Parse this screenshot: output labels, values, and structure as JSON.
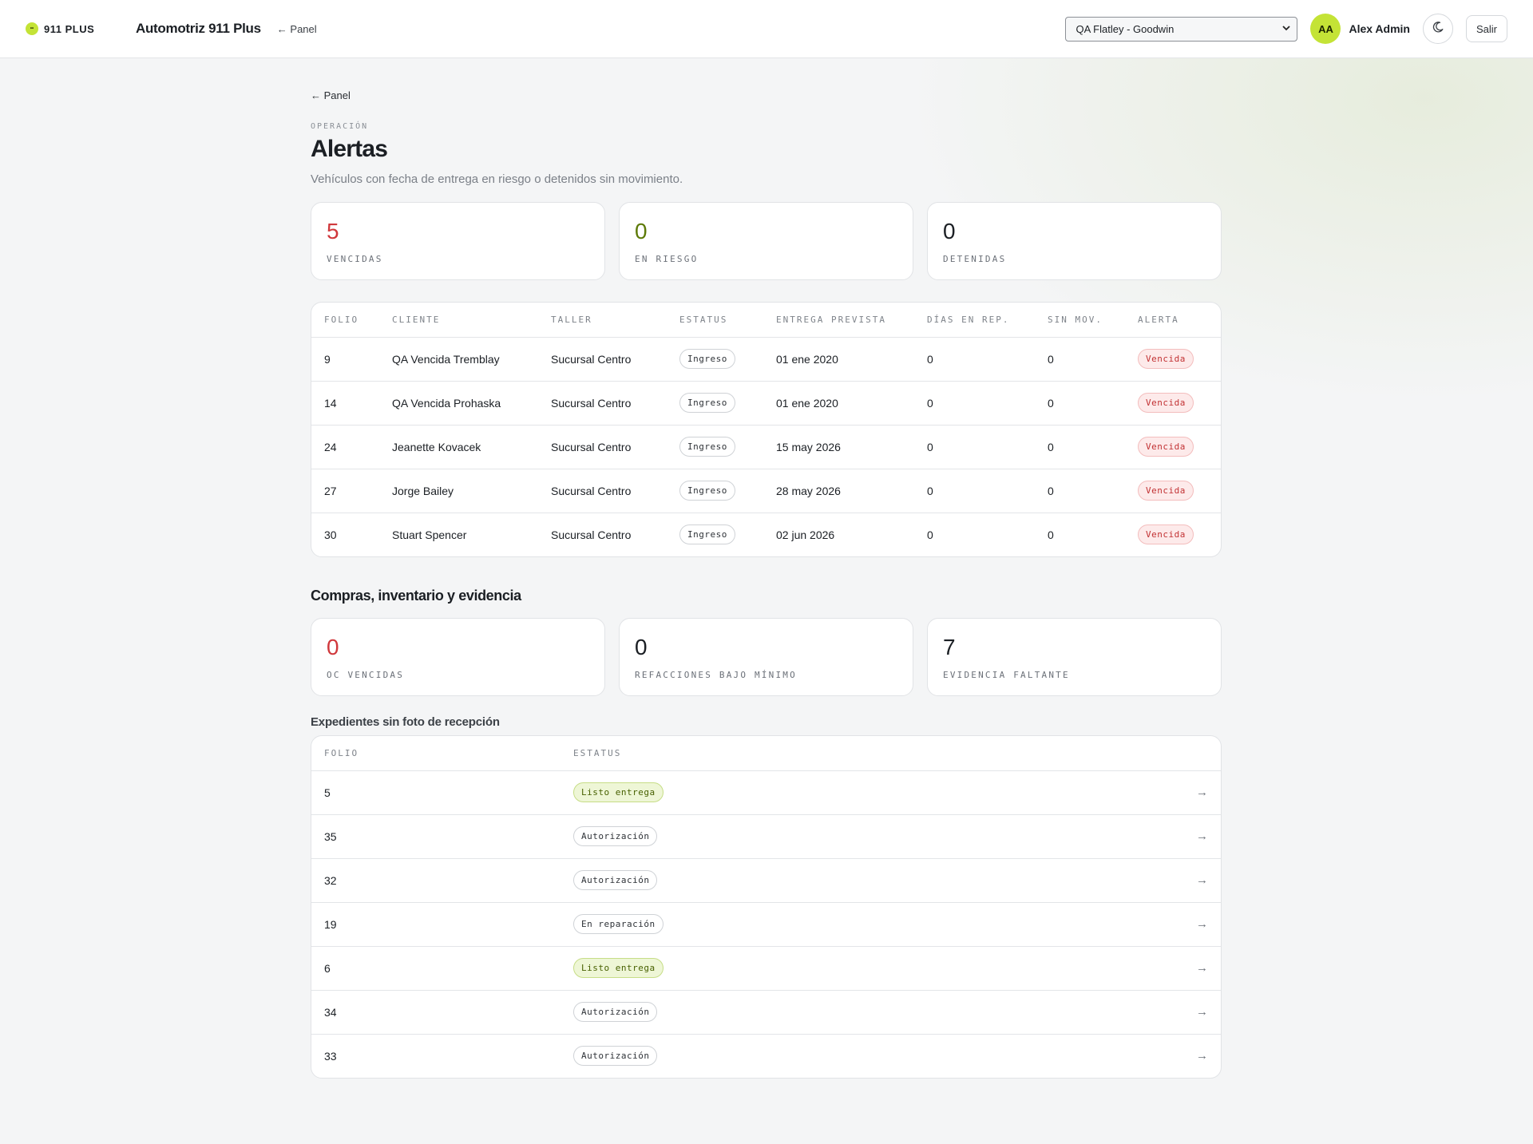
{
  "header": {
    "brand": "911 PLUS",
    "app_title": "Automotriz 911 Plus",
    "panel_link": "← Panel",
    "workshop_select": "QA Flatley - Goodwin",
    "user_initials": "AA",
    "user_name": "Alex Admin",
    "logout_label": "Salir"
  },
  "page": {
    "back_link": "← Panel",
    "eyebrow": "OPERACIÓN",
    "title": "Alertas",
    "subtitle": "Vehículos con fecha de entrega en riesgo o detenidos sin movimiento."
  },
  "alert_stats": [
    {
      "value": "5",
      "label": "VENCIDAS"
    },
    {
      "value": "0",
      "label": "EN RIESGO"
    },
    {
      "value": "0",
      "label": "DETENIDAS"
    }
  ],
  "alerts_table": {
    "columns": [
      "FOLIO",
      "CLIENTE",
      "TALLER",
      "ESTATUS",
      "ENTREGA PREVISTA",
      "DÍAS EN REP.",
      "SIN MOV.",
      "ALERTA"
    ],
    "rows": [
      {
        "folio": "9",
        "cliente": "QA Vencida Tremblay",
        "taller": "Sucursal Centro",
        "estatus": "Ingreso",
        "entrega": "01 ene 2020",
        "dias": "0",
        "sin_mov": "0",
        "alerta": "Vencida"
      },
      {
        "folio": "14",
        "cliente": "QA Vencida Prohaska",
        "taller": "Sucursal Centro",
        "estatus": "Ingreso",
        "entrega": "01 ene 2020",
        "dias": "0",
        "sin_mov": "0",
        "alerta": "Vencida"
      },
      {
        "folio": "24",
        "cliente": "Jeanette Kovacek",
        "taller": "Sucursal Centro",
        "estatus": "Ingreso",
        "entrega": "15 may 2026",
        "dias": "0",
        "sin_mov": "0",
        "alerta": "Vencida"
      },
      {
        "folio": "27",
        "cliente": "Jorge Bailey",
        "taller": "Sucursal Centro",
        "estatus": "Ingreso",
        "entrega": "28 may 2026",
        "dias": "0",
        "sin_mov": "0",
        "alerta": "Vencida"
      },
      {
        "folio": "30",
        "cliente": "Stuart Spencer",
        "taller": "Sucursal Centro",
        "estatus": "Ingreso",
        "entrega": "02 jun 2026",
        "dias": "0",
        "sin_mov": "0",
        "alerta": "Vencida"
      }
    ]
  },
  "purchases": {
    "title": "Compras, inventario y evidencia",
    "stats": [
      {
        "value": "0",
        "label": "OC VENCIDAS"
      },
      {
        "value": "0",
        "label": "REFACCIONES BAJO MÍNIMO"
      },
      {
        "value": "7",
        "label": "EVIDENCIA FALTANTE"
      }
    ]
  },
  "no_photo": {
    "title": "Expedientes sin foto de recepción",
    "columns": [
      "FOLIO",
      "ESTATUS"
    ],
    "rows": [
      {
        "folio": "5",
        "estatus": "Listo entrega",
        "ready": true
      },
      {
        "folio": "35",
        "estatus": "Autorización",
        "ready": false
      },
      {
        "folio": "32",
        "estatus": "Autorización",
        "ready": false
      },
      {
        "folio": "19",
        "estatus": "En reparación",
        "ready": false
      },
      {
        "folio": "6",
        "estatus": "Listo entrega",
        "ready": true
      },
      {
        "folio": "34",
        "estatus": "Autorización",
        "ready": false
      },
      {
        "folio": "33",
        "estatus": "Autorización",
        "ready": false
      }
    ],
    "row_arrow": "→"
  },
  "colors": {
    "accent": "#c4e336",
    "danger": "#d0383c",
    "risk": "#5d7a08",
    "background": "#f4f5f6"
  }
}
